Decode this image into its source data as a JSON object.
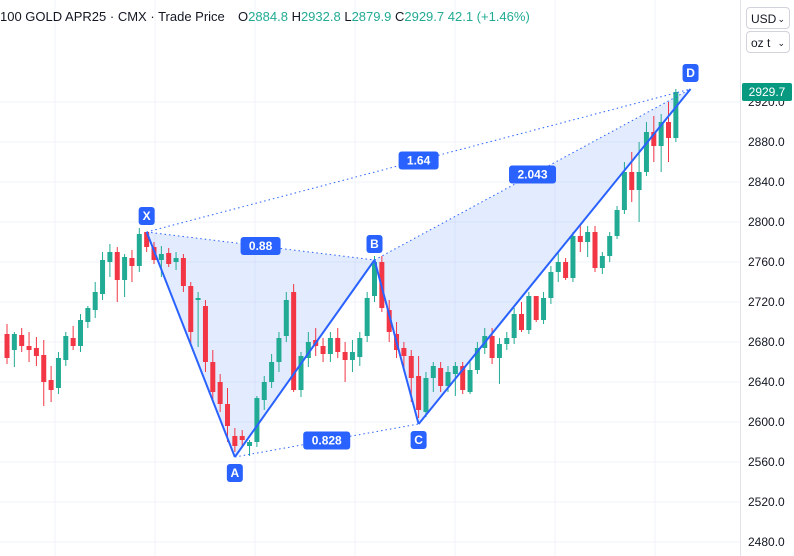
{
  "legend": {
    "symbol": "100 GOLD APR25",
    "exchange": "CMX",
    "price_type": "Trade Price",
    "o_label": "O",
    "o": "2884.8",
    "h_label": "H",
    "h": "2932.8",
    "l_label": "L",
    "l": "2879.9",
    "c_label": "C",
    "c": "2929.7",
    "change": "42.1 (+1.46%)",
    "sep": "·"
  },
  "currency_select": "USD",
  "unit_select": "oz t",
  "last_price": "2929.7",
  "colors": {
    "up": "#22ab94",
    "down": "#f23645",
    "pattern": "#2962ff",
    "pattern_fill": "#2962ff",
    "last_price_badge": "#089981"
  },
  "chart_data": {
    "type": "candlestick",
    "ylim": [
      2470,
      2945
    ],
    "yticks": [
      2480,
      2520,
      2560,
      2600,
      2640,
      2680,
      2720,
      2760,
      2800,
      2840,
      2880,
      2920
    ],
    "grid": true,
    "candles": [
      [
        2688,
        2698,
        2658,
        2664
      ],
      [
        2672,
        2690,
        2655,
        2688
      ],
      [
        2687,
        2694,
        2670,
        2676
      ],
      [
        2676,
        2690,
        2660,
        2672
      ],
      [
        2674,
        2685,
        2656,
        2666
      ],
      [
        2667,
        2682,
        2616,
        2640
      ],
      [
        2642,
        2656,
        2620,
        2632
      ],
      [
        2634,
        2670,
        2628,
        2664
      ],
      [
        2662,
        2690,
        2656,
        2686
      ],
      [
        2684,
        2696,
        2672,
        2676
      ],
      [
        2676,
        2708,
        2670,
        2702
      ],
      [
        2700,
        2716,
        2694,
        2714
      ],
      [
        2712,
        2740,
        2704,
        2730
      ],
      [
        2728,
        2770,
        2722,
        2762
      ],
      [
        2760,
        2778,
        2745,
        2770
      ],
      [
        2770,
        2775,
        2720,
        2742
      ],
      [
        2742,
        2768,
        2725,
        2765
      ],
      [
        2764,
        2772,
        2740,
        2756
      ],
      [
        2756,
        2794,
        2750,
        2788
      ],
      [
        2790,
        2788,
        2770,
        2775
      ],
      [
        2775,
        2780,
        2758,
        2762
      ],
      [
        2762,
        2776,
        2745,
        2768
      ],
      [
        2769,
        2774,
        2755,
        2758
      ],
      [
        2760,
        2770,
        2752,
        2764
      ],
      [
        2764,
        2768,
        2730,
        2736
      ],
      [
        2736,
        2740,
        2676,
        2690
      ],
      [
        2722,
        2730,
        2675,
        2724
      ],
      [
        2716,
        2722,
        2650,
        2660
      ],
      [
        2660,
        2672,
        2620,
        2630
      ],
      [
        2640,
        2648,
        2610,
        2618
      ],
      [
        2618,
        2634,
        2580,
        2596
      ],
      [
        2586,
        2594,
        2570,
        2576
      ],
      [
        2586,
        2592,
        2575,
        2582
      ],
      [
        2576,
        2582,
        2566,
        2580
      ],
      [
        2580,
        2626,
        2575,
        2624
      ],
      [
        2622,
        2646,
        2612,
        2640
      ],
      [
        2640,
        2668,
        2634,
        2660
      ],
      [
        2660,
        2690,
        2650,
        2684
      ],
      [
        2686,
        2730,
        2680,
        2722
      ],
      [
        2730,
        2738,
        2630,
        2632
      ],
      [
        2632,
        2670,
        2625,
        2666
      ],
      [
        2664,
        2690,
        2655,
        2680
      ],
      [
        2682,
        2694,
        2666,
        2676
      ],
      [
        2676,
        2684,
        2660,
        2668
      ],
      [
        2668,
        2690,
        2660,
        2684
      ],
      [
        2684,
        2694,
        2664,
        2670
      ],
      [
        2670,
        2680,
        2640,
        2662
      ],
      [
        2662,
        2682,
        2650,
        2670
      ],
      [
        2665,
        2690,
        2656,
        2684
      ],
      [
        2686,
        2730,
        2680,
        2724
      ],
      [
        2726,
        2766,
        2720,
        2760
      ],
      [
        2760,
        2766,
        2710,
        2714
      ],
      [
        2712,
        2722,
        2680,
        2690
      ],
      [
        2688,
        2700,
        2664,
        2672
      ],
      [
        2674,
        2680,
        2650,
        2666
      ],
      [
        2666,
        2672,
        2620,
        2644
      ],
      [
        2646,
        2666,
        2604,
        2612
      ],
      [
        2610,
        2650,
        2605,
        2644
      ],
      [
        2644,
        2660,
        2630,
        2656
      ],
      [
        2654,
        2660,
        2630,
        2636
      ],
      [
        2636,
        2656,
        2630,
        2650
      ],
      [
        2648,
        2660,
        2626,
        2656
      ],
      [
        2656,
        2660,
        2628,
        2632
      ],
      [
        2630,
        2660,
        2628,
        2652
      ],
      [
        2652,
        2680,
        2648,
        2674
      ],
      [
        2674,
        2694,
        2668,
        2686
      ],
      [
        2686,
        2694,
        2658,
        2664
      ],
      [
        2664,
        2684,
        2638,
        2678
      ],
      [
        2678,
        2690,
        2672,
        2684
      ],
      [
        2684,
        2714,
        2678,
        2708
      ],
      [
        2708,
        2720,
        2690,
        2692
      ],
      [
        2692,
        2730,
        2688,
        2726
      ],
      [
        2726,
        2724,
        2700,
        2702
      ],
      [
        2702,
        2730,
        2698,
        2724
      ],
      [
        2724,
        2756,
        2718,
        2750
      ],
      [
        2750,
        2770,
        2740,
        2760
      ],
      [
        2760,
        2764,
        2742,
        2744
      ],
      [
        2744,
        2790,
        2740,
        2786
      ],
      [
        2786,
        2798,
        2770,
        2780
      ],
      [
        2780,
        2796,
        2765,
        2790
      ],
      [
        2790,
        2796,
        2750,
        2754
      ],
      [
        2754,
        2770,
        2748,
        2766
      ],
      [
        2766,
        2790,
        2760,
        2786
      ],
      [
        2786,
        2816,
        2783,
        2812
      ],
      [
        2812,
        2860,
        2808,
        2850
      ],
      [
        2850,
        2870,
        2820,
        2832
      ],
      [
        2832,
        2880,
        2800,
        2850
      ],
      [
        2850,
        2900,
        2846,
        2890
      ],
      [
        2890,
        2906,
        2860,
        2876
      ],
      [
        2876,
        2908,
        2850,
        2900
      ],
      [
        2900,
        2920,
        2860,
        2884
      ],
      [
        2884,
        2933,
        2880,
        2930
      ]
    ],
    "pattern": {
      "points": [
        {
          "label": "X",
          "i": 19,
          "price": 2790
        },
        {
          "label": "A",
          "i": 31,
          "price": 2565
        },
        {
          "label": "B",
          "i": 50,
          "price": 2762
        },
        {
          "label": "C",
          "i": 56,
          "price": 2598
        },
        {
          "label": "D",
          "i": 93,
          "price": 2933
        }
      ],
      "ratios": [
        {
          "label": "0.88",
          "from": 0,
          "to": 2
        },
        {
          "label": "0.828",
          "from": 1,
          "to": 3
        },
        {
          "label": "1.64",
          "from": 0,
          "to": 4
        },
        {
          "label": "2.043",
          "from": 2,
          "to": 4
        }
      ]
    }
  }
}
